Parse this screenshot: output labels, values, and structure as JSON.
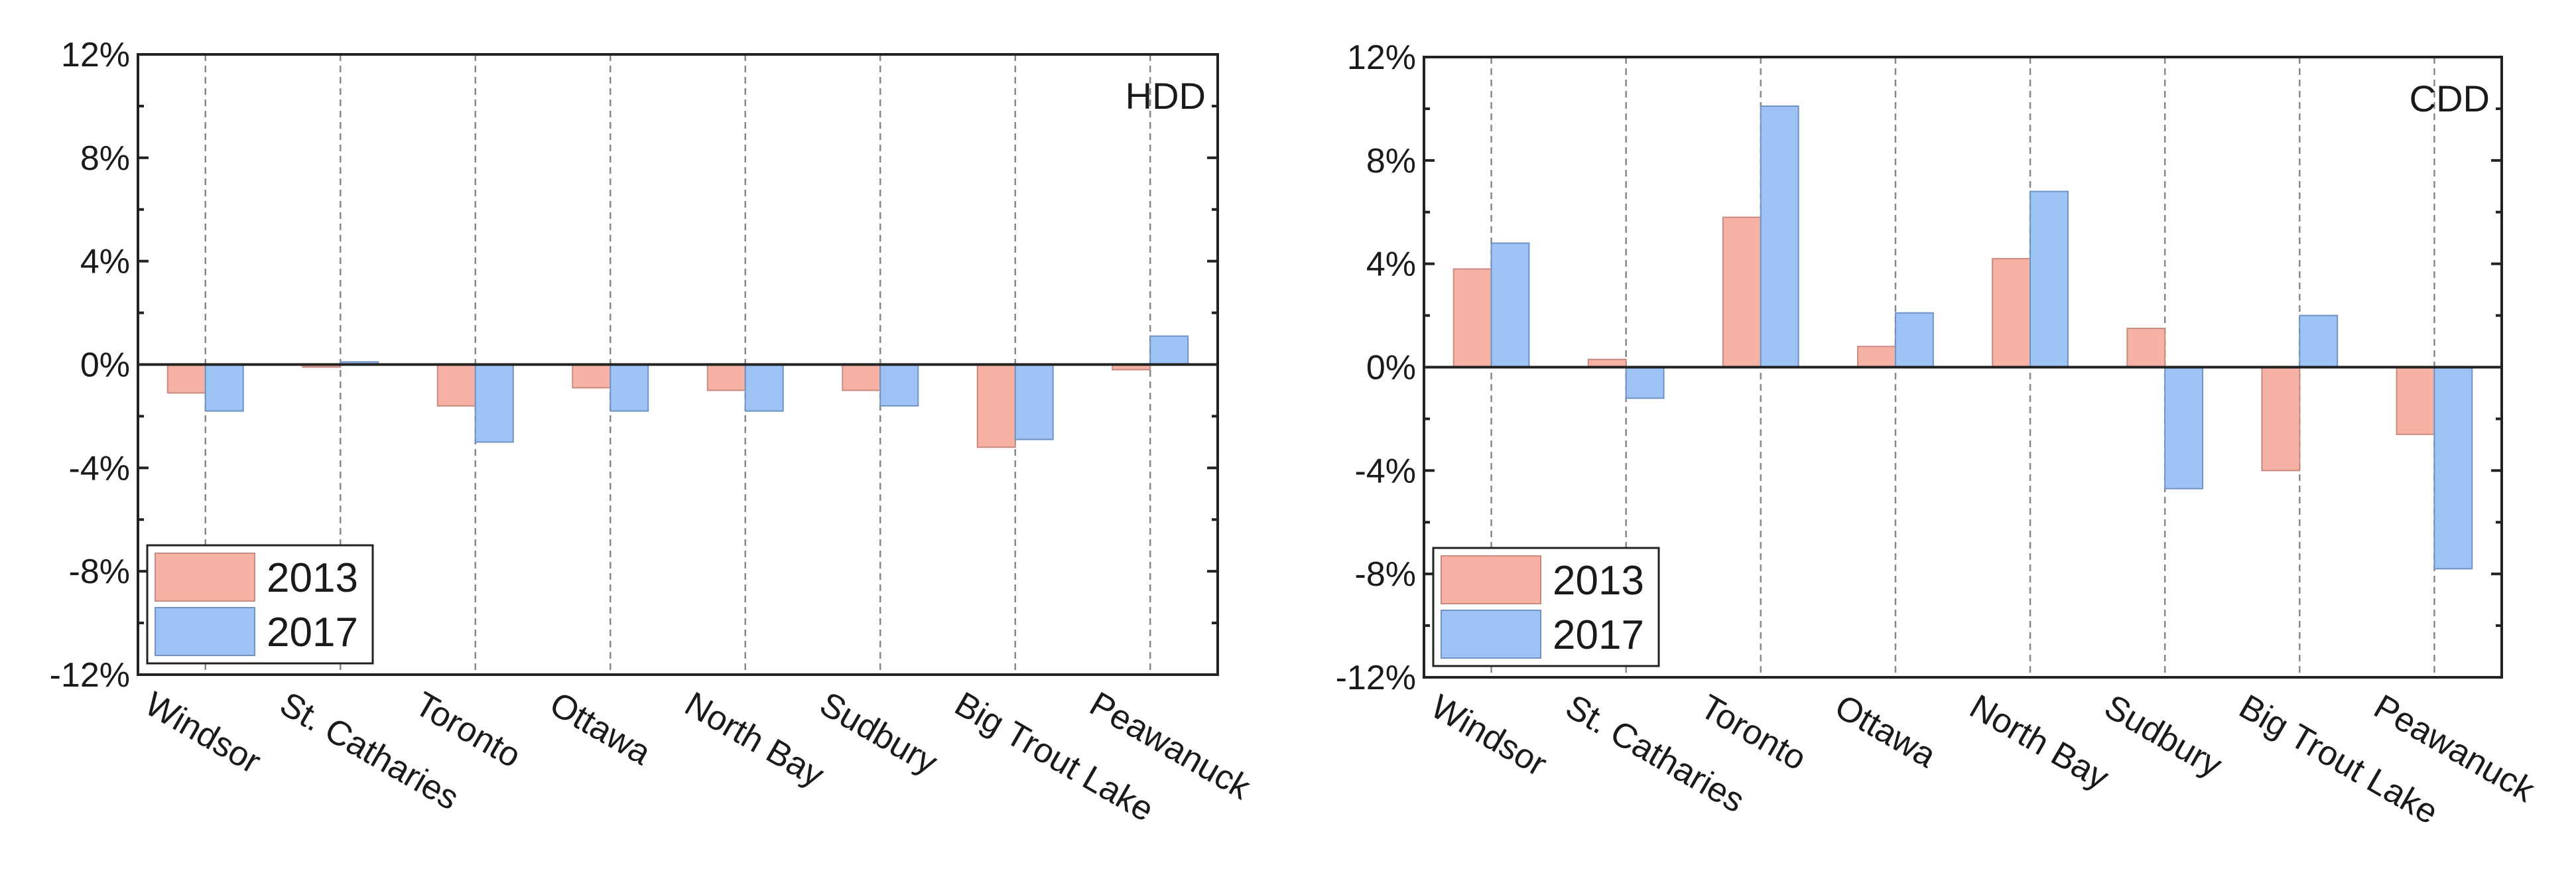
{
  "chart_data": [
    {
      "type": "bar",
      "panel_label": "HDD",
      "categories": [
        "Windsor",
        "St. Catharies",
        "Toronto",
        "Ottawa",
        "North Bay",
        "Sudbury",
        "Big Trout Lake",
        "Peawanuck"
      ],
      "series": [
        {
          "name": "2013",
          "color": "#f7b2a6",
          "stroke": "#c98a80",
          "values": [
            -1.1,
            -0.1,
            -1.6,
            -0.9,
            -1.0,
            -1.0,
            -3.2,
            -0.2
          ]
        },
        {
          "name": "2017",
          "color": "#9ec4f5",
          "stroke": "#6f93c2",
          "values": [
            -1.8,
            0.1,
            -3.0,
            -1.8,
            -1.8,
            -1.6,
            -2.9,
            1.1
          ]
        }
      ],
      "ylim": [
        -12,
        12
      ],
      "yticks": [
        "-12%",
        "-8%",
        "-4%",
        "0%",
        "4%",
        "8%",
        "12%"
      ],
      "ytick_values": [
        -12,
        -8,
        -4,
        0,
        4,
        8,
        12
      ],
      "grid": "vertical dashed at categories",
      "legend_position": "bottom-left"
    },
    {
      "type": "bar",
      "panel_label": "CDD",
      "categories": [
        "Windsor",
        "St. Catharies",
        "Toronto",
        "Ottawa",
        "North Bay",
        "Sudbury",
        "Big Trout Lake",
        "Peawanuck"
      ],
      "series": [
        {
          "name": "2013",
          "color": "#f7b2a6",
          "stroke": "#c98a80",
          "values": [
            3.8,
            0.3,
            5.8,
            0.8,
            4.2,
            1.5,
            -4.0,
            -2.6
          ]
        },
        {
          "name": "2017",
          "color": "#9ec4f5",
          "stroke": "#6f93c2",
          "values": [
            4.8,
            -1.2,
            10.1,
            2.1,
            6.8,
            -4.7,
            2.0,
            -7.8
          ]
        }
      ],
      "ylim": [
        -12,
        12
      ],
      "yticks": [
        "-12%",
        "-8%",
        "-4%",
        "0%",
        "4%",
        "8%",
        "12%"
      ],
      "ytick_values": [
        -12,
        -8,
        -4,
        0,
        4,
        8,
        12
      ],
      "grid": "vertical dashed at categories",
      "legend_position": "bottom-left"
    }
  ]
}
